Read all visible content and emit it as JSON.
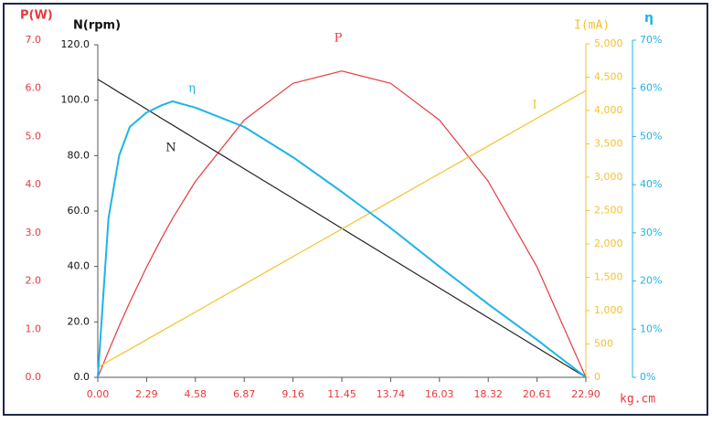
{
  "chart_data": {
    "type": "line",
    "x_label": "kg.cm",
    "y_label": "P(W)",
    "y2_label": "N(rpm)",
    "y3_label": "I(mA)",
    "y4_label": "η",
    "x": [
      0,
      0.5,
      1,
      1.5,
      2.29,
      3,
      3.5,
      4.58,
      6.87,
      9.16,
      11.45,
      13.74,
      16.03,
      18.32,
      20.61,
      22.9
    ],
    "xlim": [
      0,
      22.9
    ],
    "xticks": [
      {
        "value": 0,
        "label": "0.00"
      },
      {
        "value": 2.29,
        "label": "2.29"
      },
      {
        "value": 4.58,
        "label": "4.58"
      },
      {
        "value": 6.87,
        "label": "6.87"
      },
      {
        "value": 9.16,
        "label": "9.16"
      },
      {
        "value": 11.45,
        "label": "11.45"
      },
      {
        "value": 13.74,
        "label": "13.74"
      },
      {
        "value": 16.03,
        "label": "16.03"
      },
      {
        "value": 18.32,
        "label": "18.32"
      },
      {
        "value": 20.61,
        "label": "20.61"
      },
      {
        "value": 22.9,
        "label": "22.90"
      }
    ],
    "ylim": [
      0,
      7
    ],
    "yticks": [
      {
        "value": 0,
        "label": "0.0"
      },
      {
        "value": 1,
        "label": "1.0"
      },
      {
        "value": 2,
        "label": "2.0"
      },
      {
        "value": 3,
        "label": "3.0"
      },
      {
        "value": 4,
        "label": "4.0"
      },
      {
        "value": 5,
        "label": "5.0"
      },
      {
        "value": 6,
        "label": "6.0"
      },
      {
        "value": 7,
        "label": "7.0"
      }
    ],
    "y2lim": [
      0,
      120
    ],
    "y2ticks": [
      {
        "value": 0,
        "label": "0.0"
      },
      {
        "value": 20,
        "label": "20.0"
      },
      {
        "value": 40,
        "label": "40.0"
      },
      {
        "value": 60,
        "label": "60.0"
      },
      {
        "value": 80,
        "label": "80.0"
      },
      {
        "value": 100,
        "label": "100.0"
      },
      {
        "value": 120,
        "label": "120.0"
      }
    ],
    "y3lim": [
      0,
      5000
    ],
    "y3ticks": [
      0,
      500,
      {
        "value": 1000,
        "label": "1,000"
      },
      {
        "value": 1500,
        "label": "1,500"
      },
      {
        "value": 2000,
        "label": "2,000"
      },
      {
        "value": 2500,
        "label": "2,500"
      },
      {
        "value": 3000,
        "label": "3,000"
      },
      {
        "value": 3500,
        "label": "3,500"
      },
      {
        "value": 4000,
        "label": "4,000"
      },
      {
        "value": 4500,
        "label": "4,500"
      },
      {
        "value": 5000,
        "label": "5,000"
      }
    ],
    "y4lim": [
      0,
      70
    ],
    "y4ticks": [
      {
        "value": 0,
        "label": "0%"
      },
      {
        "value": 10,
        "label": "10%"
      },
      {
        "value": 20,
        "label": "20%"
      },
      {
        "value": 30,
        "label": "30%"
      },
      {
        "value": 40,
        "label": "40%"
      },
      {
        "value": 50,
        "label": "50%"
      },
      {
        "value": 60,
        "label": "60%"
      },
      {
        "value": 70,
        "label": "70%"
      }
    ],
    "series": [
      {
        "name": "P",
        "color": "#e8383d",
        "axis": "y",
        "values": [
          0,
          0.543,
          1.062,
          1.557,
          2.29,
          2.896,
          3.294,
          4.07,
          5.342,
          6.105,
          6.36,
          6.105,
          5.342,
          4.07,
          2.29,
          0
        ]
      },
      {
        "name": "N",
        "color": "#222222",
        "axis": "y2",
        "values": [
          107.5,
          105.2,
          102.8,
          100.5,
          96.75,
          93.4,
          91.1,
          86.0,
          75.25,
          64.5,
          53.75,
          43.0,
          32.25,
          21.5,
          10.75,
          0
        ]
      },
      {
        "name": "I",
        "color": "#f5c12e",
        "axis": "y3",
        "values": [
          150,
          241,
          331,
          422,
          565,
          694,
          784,
          980,
          1395,
          1810,
          2225,
          2640,
          3055,
          3470,
          3885,
          4300
        ]
      },
      {
        "name": "η",
        "color": "#1fb3e8",
        "axis": "y4",
        "values": [
          0,
          33,
          46,
          52,
          55,
          56.5,
          57.3,
          56,
          52,
          45.7,
          38.5,
          31,
          23,
          15.2,
          7.8,
          0
        ]
      }
    ]
  }
}
